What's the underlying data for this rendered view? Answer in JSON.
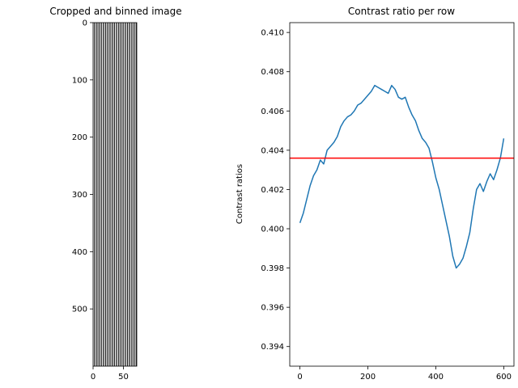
{
  "chart_data": [
    {
      "type": "heatmap",
      "title": "Cropped and binned image",
      "xlabel": "",
      "ylabel": "",
      "xlim": [
        0,
        72
      ],
      "ylim": [
        600,
        0
      ],
      "xticks": [
        0,
        50
      ],
      "yticks": [
        0,
        100,
        200,
        300,
        400,
        500
      ],
      "description_stripes": 20,
      "colormap": "gray",
      "grid": false
    },
    {
      "type": "line",
      "title": "Contrast ratio per row",
      "xlabel": "",
      "ylabel": "Contrast ratios",
      "xlim": [
        -30,
        630
      ],
      "ylim": [
        0.393,
        0.4105
      ],
      "xticks": [
        0,
        200,
        400,
        600
      ],
      "yticks": [
        0.394,
        0.396,
        0.398,
        0.4,
        0.402,
        0.404,
        0.406,
        0.408,
        0.41
      ],
      "ytick_labels": [
        "0.394",
        "0.396",
        "0.398",
        "0.400",
        "0.402",
        "0.404",
        "0.406",
        "0.408",
        "0.410"
      ],
      "series": [
        {
          "color": "#1f77b4",
          "x": [
            0,
            10,
            20,
            30,
            40,
            50,
            60,
            70,
            80,
            90,
            100,
            110,
            120,
            130,
            140,
            150,
            160,
            170,
            180,
            190,
            200,
            210,
            220,
            230,
            240,
            250,
            260,
            270,
            280,
            290,
            300,
            310,
            320,
            330,
            340,
            350,
            360,
            370,
            380,
            390,
            400,
            410,
            420,
            430,
            440,
            450,
            460,
            470,
            480,
            490,
            500,
            510,
            520,
            530,
            540,
            550,
            560,
            570,
            580,
            590,
            600
          ],
          "y": [
            0.4003,
            0.4008,
            0.4015,
            0.4022,
            0.4027,
            0.403,
            0.4035,
            0.4033,
            0.404,
            0.4042,
            0.4044,
            0.4047,
            0.4052,
            0.4055,
            0.4057,
            0.4058,
            0.406,
            0.4063,
            0.4064,
            0.4066,
            0.4068,
            0.407,
            0.4073,
            0.4072,
            0.4071,
            0.407,
            0.4069,
            0.4073,
            0.4071,
            0.4067,
            0.4066,
            0.4067,
            0.4062,
            0.4058,
            0.4055,
            0.405,
            0.4046,
            0.4044,
            0.4041,
            0.4034,
            0.4026,
            0.402,
            0.4012,
            0.4004,
            0.3996,
            0.3986,
            0.398,
            0.3982,
            0.3985,
            0.3991,
            0.3998,
            0.401,
            0.402,
            0.4023,
            0.4019,
            0.4024,
            0.4028,
            0.4025,
            0.403,
            0.4036,
            0.4046
          ]
        }
      ],
      "hline": {
        "y": 0.4036,
        "color": "#ff0000"
      }
    }
  ]
}
